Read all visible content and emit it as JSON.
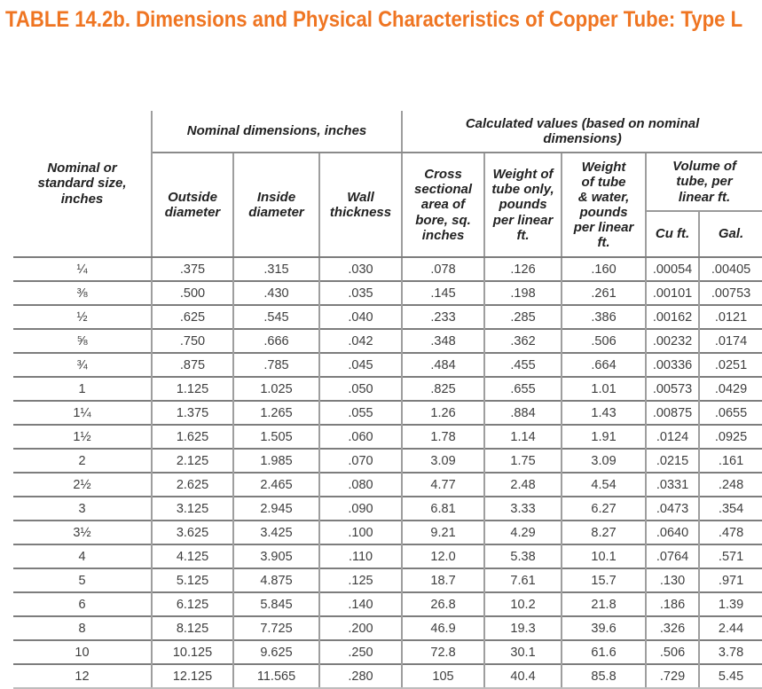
{
  "colors": {
    "title_orange": "#EF7522",
    "rule_dark_gray": "#7d7d7d",
    "rule_light_gray": "#9e9e9e",
    "text_dark": "#3e3e3e"
  },
  "title": "TABLE 14.2b. Dimensions and Physical Characteristics of Copper Tube: Type L",
  "table": {
    "header": {
      "col_size": "Nominal or\nstandard size,\ninches",
      "group_nominal": "Nominal dimensions, inches",
      "group_calculated": "Calculated values (based on nominal\ndimensions)",
      "outside_diameter": "Outside\ndiameter",
      "inside_diameter": "Inside\ndiameter",
      "wall_thickness": "Wall\nthickness",
      "cross_sectional": "Cross\nsectional\narea of\nbore, sq.\ninches",
      "weight_tube_only": "Weight of\ntube only,\npounds\nper linear\nft.",
      "weight_tube_water": "Weight\nof tube\n& water,\npounds\nper linear\nft.",
      "volume_group": "Volume of\ntube, per\nlinear ft.",
      "cu_ft": "Cu ft.",
      "gal": "Gal."
    },
    "rows": [
      [
        "¼",
        ".375",
        ".315",
        ".030",
        ".078",
        ".126",
        ".160",
        ".00054",
        ".00405"
      ],
      [
        "⅜",
        ".500",
        ".430",
        ".035",
        ".145",
        ".198",
        ".261",
        ".00101",
        ".00753"
      ],
      [
        "½",
        ".625",
        ".545",
        ".040",
        ".233",
        ".285",
        ".386",
        ".00162",
        ".0121"
      ],
      [
        "⅝",
        ".750",
        ".666",
        ".042",
        ".348",
        ".362",
        ".506",
        ".00232",
        ".0174"
      ],
      [
        "¾",
        ".875",
        ".785",
        ".045",
        ".484",
        ".455",
        ".664",
        ".00336",
        ".0251"
      ],
      [
        "1",
        "1.125",
        "1.025",
        ".050",
        ".825",
        ".655",
        "1.01",
        ".00573",
        ".0429"
      ],
      [
        "1¼",
        "1.375",
        "1.265",
        ".055",
        "1.26",
        ".884",
        "1.43",
        ".00875",
        ".0655"
      ],
      [
        "1½",
        "1.625",
        "1.505",
        ".060",
        "1.78",
        "1.14",
        "1.91",
        ".0124",
        ".0925"
      ],
      [
        "2",
        "2.125",
        "1.985",
        ".070",
        "3.09",
        "1.75",
        "3.09",
        ".0215",
        ".161"
      ],
      [
        "2½",
        "2.625",
        "2.465",
        ".080",
        "4.77",
        "2.48",
        "4.54",
        ".0331",
        ".248"
      ],
      [
        "3",
        "3.125",
        "2.945",
        ".090",
        "6.81",
        "3.33",
        "6.27",
        ".0473",
        ".354"
      ],
      [
        "3½",
        "3.625",
        "3.425",
        ".100",
        "9.21",
        "4.29",
        "8.27",
        ".0640",
        ".478"
      ],
      [
        "4",
        "4.125",
        "3.905",
        ".110",
        "12.0",
        "5.38",
        "10.1",
        ".0764",
        ".571"
      ],
      [
        "5",
        "5.125",
        "4.875",
        ".125",
        "18.7",
        "7.61",
        "15.7",
        ".130",
        ".971"
      ],
      [
        "6",
        "6.125",
        "5.845",
        ".140",
        "26.8",
        "10.2",
        "21.8",
        ".186",
        "1.39"
      ],
      [
        "8",
        "8.125",
        "7.725",
        ".200",
        "46.9",
        "19.3",
        "39.6",
        ".326",
        "2.44"
      ],
      [
        "10",
        "10.125",
        "9.625",
        ".250",
        "72.8",
        "30.1",
        "61.6",
        ".506",
        "3.78"
      ],
      [
        "12",
        "12.125",
        "11.565",
        ".280",
        "105",
        "40.4",
        "85.8",
        ".729",
        "5.45"
      ]
    ]
  }
}
